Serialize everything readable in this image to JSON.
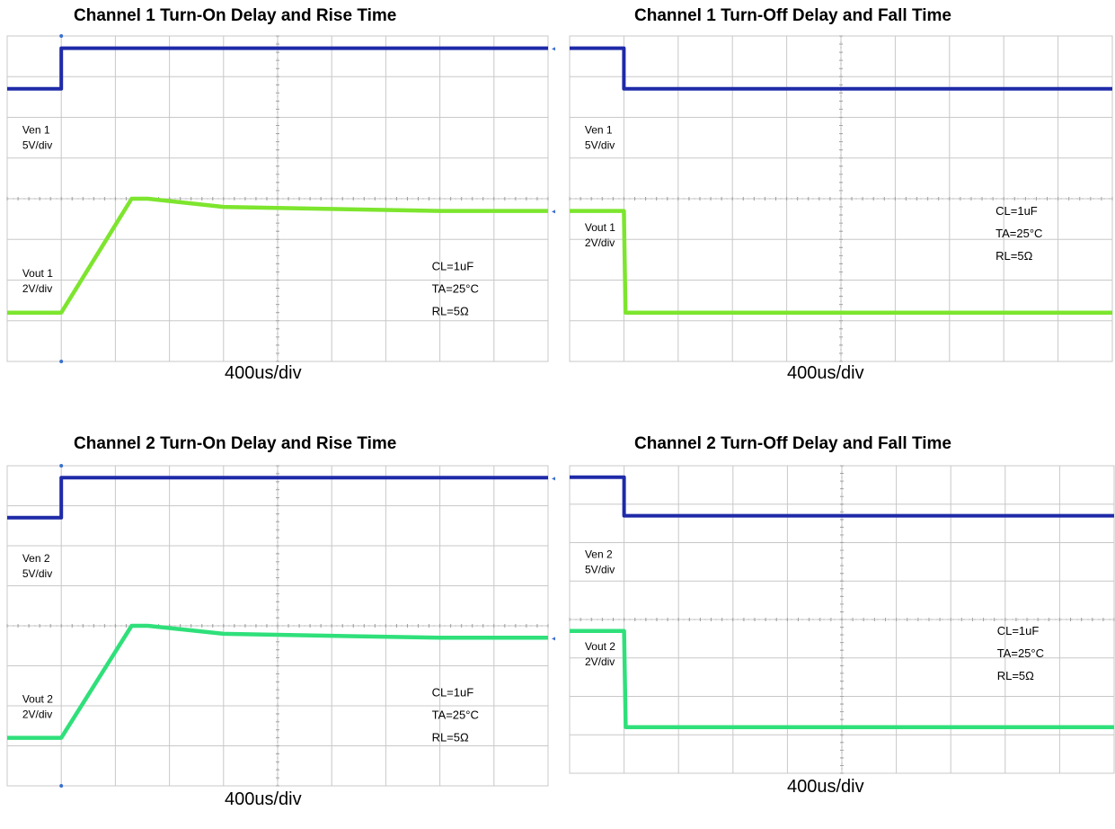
{
  "colors": {
    "enable_trace": "#1e2aa8",
    "output_trace_ch1": "#7de52e",
    "output_trace_ch2": "#2fe07a",
    "grid": "#c8c8c8",
    "marker": "#3a6fd0"
  },
  "chart_data": [
    {
      "type": "line",
      "title": "Channel 1 Turn-On Delay and Rise Time",
      "xlabel": "400us/div",
      "x_units": "div",
      "xlim": [
        0,
        10
      ],
      "ylim": [
        0,
        8
      ],
      "grid": true,
      "series": [
        {
          "name": "Ven 1",
          "scale": "5V/div",
          "color_key": "enable_trace",
          "x": [
            0,
            1,
            1,
            10
          ],
          "y": [
            6.7,
            6.7,
            7.7,
            7.7
          ]
        },
        {
          "name": "Vout 1",
          "scale": "2V/div",
          "color_key": "output_trace_ch1",
          "x": [
            0,
            1,
            2.3,
            2.6,
            4,
            8,
            10
          ],
          "y": [
            1.2,
            1.2,
            4.0,
            4.0,
            3.8,
            3.7,
            3.7
          ]
        }
      ],
      "annotations": [
        "CL=1uF",
        "TA=25°C",
        "RL=5Ω"
      ]
    },
    {
      "type": "line",
      "title": "Channel 1 Turn-Off Delay and Fall Time",
      "xlabel": "400us/div",
      "x_units": "div",
      "xlim": [
        0,
        10
      ],
      "ylim": [
        0,
        8
      ],
      "grid": true,
      "series": [
        {
          "name": "Ven 1",
          "scale": "5V/div",
          "color_key": "enable_trace",
          "x": [
            0,
            1,
            1,
            10
          ],
          "y": [
            7.7,
            7.7,
            6.7,
            6.7
          ]
        },
        {
          "name": "Vout 1",
          "scale": "2V/div",
          "color_key": "output_trace_ch1",
          "x": [
            0,
            1,
            1.03,
            10
          ],
          "y": [
            3.7,
            3.7,
            1.2,
            1.2
          ]
        }
      ],
      "annotations": [
        "CL=1uF",
        "TA=25°C",
        "RL=5Ω"
      ]
    },
    {
      "type": "line",
      "title": "Channel 2 Turn-On Delay and Rise Time",
      "xlabel": "400us/div",
      "x_units": "div",
      "xlim": [
        0,
        10
      ],
      "ylim": [
        0,
        8
      ],
      "grid": true,
      "series": [
        {
          "name": "Ven 2",
          "scale": "5V/div",
          "color_key": "enable_trace",
          "x": [
            0,
            1,
            1,
            10
          ],
          "y": [
            6.7,
            6.7,
            7.7,
            7.7
          ]
        },
        {
          "name": "Vout 2",
          "scale": "2V/div",
          "color_key": "output_trace_ch2",
          "x": [
            0,
            1,
            2.3,
            2.6,
            4,
            8,
            10
          ],
          "y": [
            1.2,
            1.2,
            4.0,
            4.0,
            3.8,
            3.7,
            3.7
          ]
        }
      ],
      "annotations": [
        "CL=1uF",
        "TA=25°C",
        "RL=5Ω"
      ]
    },
    {
      "type": "line",
      "title": "Channel 2 Turn-Off Delay and Fall Time",
      "xlabel": "400us/div",
      "x_units": "div",
      "xlim": [
        0,
        10
      ],
      "ylim": [
        0,
        8
      ],
      "grid": true,
      "series": [
        {
          "name": "Ven 2",
          "scale": "5V/div",
          "color_key": "enable_trace",
          "x": [
            0,
            1,
            1,
            10
          ],
          "y": [
            7.7,
            7.7,
            6.7,
            6.7
          ]
        },
        {
          "name": "Vout 2",
          "scale": "2V/div",
          "color_key": "output_trace_ch2",
          "x": [
            0,
            1,
            1.03,
            10
          ],
          "y": [
            3.7,
            3.7,
            1.2,
            1.2
          ]
        }
      ],
      "annotations": [
        "CL=1uF",
        "TA=25°C",
        "RL=5Ω"
      ]
    }
  ]
}
